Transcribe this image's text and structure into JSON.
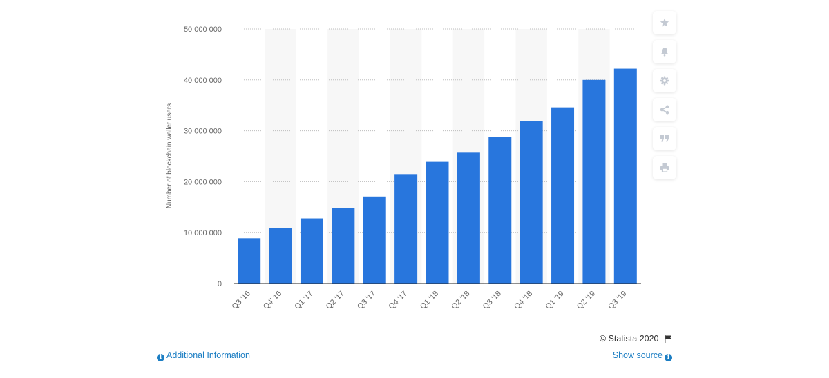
{
  "chart_data": {
    "type": "bar",
    "categories": [
      "Q3 '16",
      "Q4' 16",
      "Q1 '17",
      "Q2 '17",
      "Q3 '17",
      "Q4 '17",
      "Q1 '18",
      "Q2 '18",
      "Q3 '18",
      "Q4 '18",
      "Q1 '19",
      "Q2 '19",
      "Q3 '19"
    ],
    "values": [
      8900000,
      10900000,
      12800000,
      14800000,
      17100000,
      21500000,
      23900000,
      25700000,
      28800000,
      31900000,
      34600000,
      40000000,
      42200000
    ],
    "ylabel": "Number of blockchain wallet users",
    "xlabel": "",
    "ylim": [
      0,
      50000000
    ],
    "yticks": [
      "0",
      "10 000 000",
      "20 000 000",
      "30 000 000",
      "40 000 000",
      "50 000 000"
    ],
    "grid": true,
    "bar_color": "#2876dd",
    "band_color": "#f7f7f7",
    "gridline_color": "#bdbdbd"
  },
  "toolbar": [
    {
      "icon": "star-icon"
    },
    {
      "icon": "bell-icon"
    },
    {
      "icon": "gear-icon"
    },
    {
      "icon": "share-icon"
    },
    {
      "icon": "quote-icon"
    },
    {
      "icon": "print-icon"
    }
  ],
  "footer": {
    "credit": "© Statista 2020",
    "additional_info": "Additional Information",
    "show_source": "Show source"
  },
  "colors": {
    "link": "#1c7ec3",
    "icon": "#c4cad3"
  }
}
